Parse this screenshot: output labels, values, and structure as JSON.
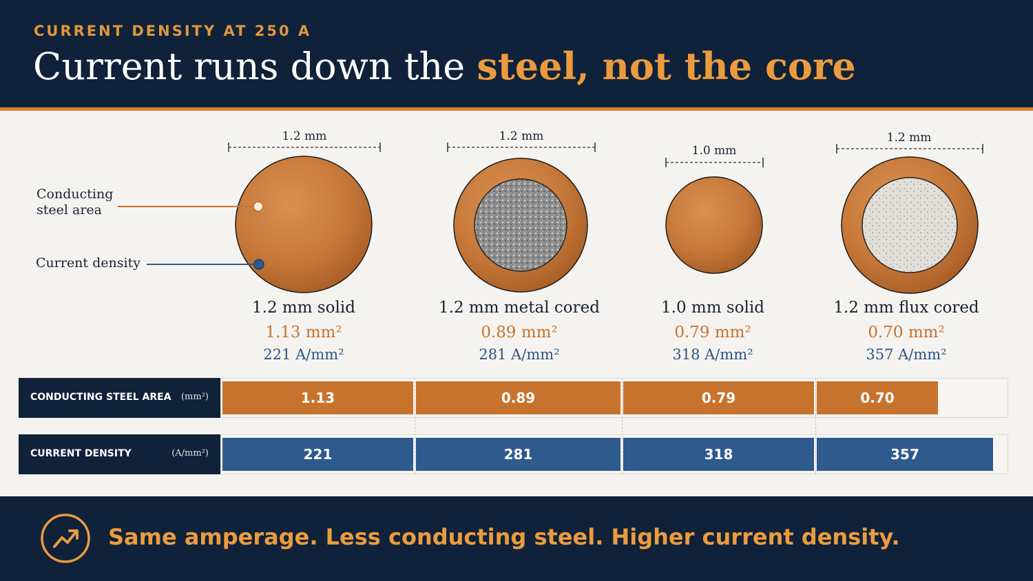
{
  "header": {
    "kicker": "CURRENT DENSITY AT 250 A",
    "title_plain": "Current runs down the ",
    "title_highlight": "steel, not the core"
  },
  "callouts": {
    "steel_area": "Conducting steel area",
    "current_density": "Current density"
  },
  "wires": [
    {
      "dimension": "1.2 mm",
      "name": "1.2 mm solid",
      "area": "1.13 mm²",
      "density": "221 A/mm²",
      "core": "none"
    },
    {
      "dimension": "1.2 mm",
      "name": "1.2 mm metal cored",
      "area": "0.89 mm²",
      "density": "281 A/mm²",
      "core": "metal"
    },
    {
      "dimension": "1.0 mm",
      "name": "1.0 mm solid",
      "area": "0.79 mm²",
      "density": "318 A/mm²",
      "core": "none"
    },
    {
      "dimension": "1.2 mm",
      "name": "1.2 mm flux cored",
      "area": "0.70 mm²",
      "density": "357 A/mm²",
      "core": "flux"
    }
  ],
  "table": {
    "steel_row": {
      "label": "CONDUCTING STEEL AREA",
      "unit": "(mm²)",
      "values": [
        "1.13",
        "0.89",
        "0.79",
        "0.70"
      ]
    },
    "density_row": {
      "label": "CURRENT DENSITY",
      "unit": "(A/mm²)",
      "values": [
        "221",
        "281",
        "318",
        "357"
      ]
    }
  },
  "chart_data": {
    "type": "bar",
    "categories": [
      "1.2 mm solid",
      "1.2 mm metal cored",
      "1.0 mm solid",
      "1.2 mm flux cored"
    ],
    "series": [
      {
        "name": "CONDUCTING STEEL AREA",
        "unit": "mm²",
        "values": [
          1.13,
          0.89,
          0.79,
          0.7
        ]
      },
      {
        "name": "CURRENT DENSITY",
        "unit": "A/mm²",
        "values": [
          221,
          281,
          318,
          357
        ]
      }
    ],
    "title": "Current runs down the steel, not the core"
  },
  "footer": {
    "text": "Same amperage. Less conducting steel. Higher current density.",
    "icon": "trending-up-icon"
  },
  "colors": {
    "navy": "#0f2239",
    "orange": "#d9842f",
    "steel": "#c8732d",
    "blue": "#2e5a8e"
  }
}
